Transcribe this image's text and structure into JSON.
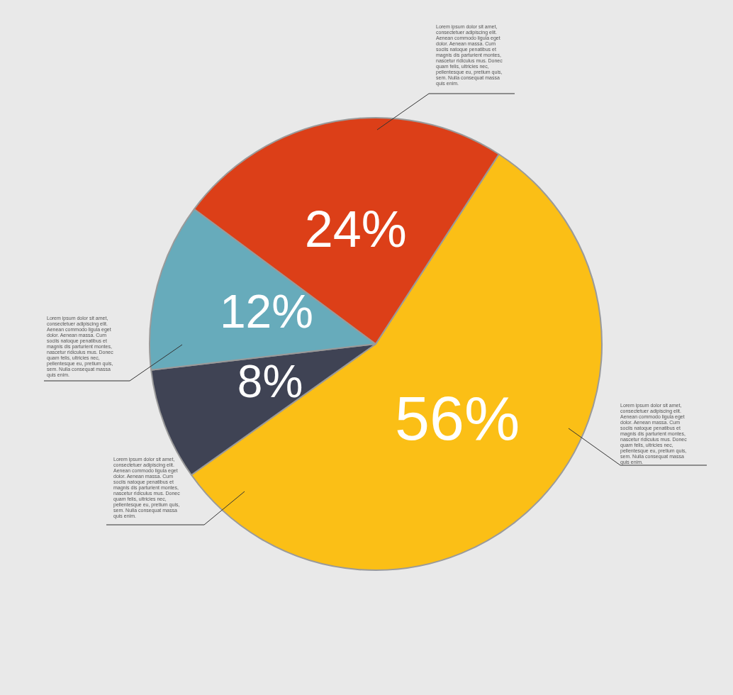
{
  "chart_data": {
    "type": "pie",
    "categories": [
      null,
      null,
      null,
      null
    ],
    "values": [
      56,
      8,
      12,
      24
    ],
    "colors": [
      "#fbbf16",
      "#3f4354",
      "#67abbb",
      "#dc3f18"
    ],
    "value_labels": [
      "56%",
      "8%",
      "12%",
      "24%"
    ],
    "legend": false,
    "annotations": [
      "Lorem ipsum dolor sit amet, consectetuer adipiscing elit. Aenean commodo ligula eget dolor. Aenean massa. Cum sociis natoque penatibus et magnis dis parturient montes, nascetur ridiculus mus. Donec quam felis, ultricies nec, pellentesque eu, pretium quis, sem. Nulla consequat massa quis enim.",
      "Lorem ipsum dolor sit amet, consectetuer adipiscing elit. Aenean commodo ligula eget dolor. Aenean massa. Cum sociis natoque penatibus et magnis dis parturient montes, nascetur ridiculus mus. Donec quam felis, ultricies nec, pellentesque eu, pretium quis, sem. Nulla consequat massa quis enim.",
      "Lorem ipsum dolor sit amet, consectetuer adipiscing elit. Aenean commodo ligula eget dolor. Aenean massa. Cum sociis natoque penatibus et magnis dis parturient montes, nascetur ridiculus mus. Donec quam felis, ultricies nec, pellentesque eu, pretium quis, sem. Nulla consequat massa quis enim.",
      "Lorem ipsum dolor sit amet, consectetuer adipiscing elit. Aenean commodo ligula eget dolor. Aenean massa. Cum sociis natoque penatibus et magnis dis parturient montes, nascetur ridiculus mus. Donec quam felis, ultricies nec, pellentesque eu, pretium quis, sem. Nulla consequat massa quis enim."
    ]
  }
}
